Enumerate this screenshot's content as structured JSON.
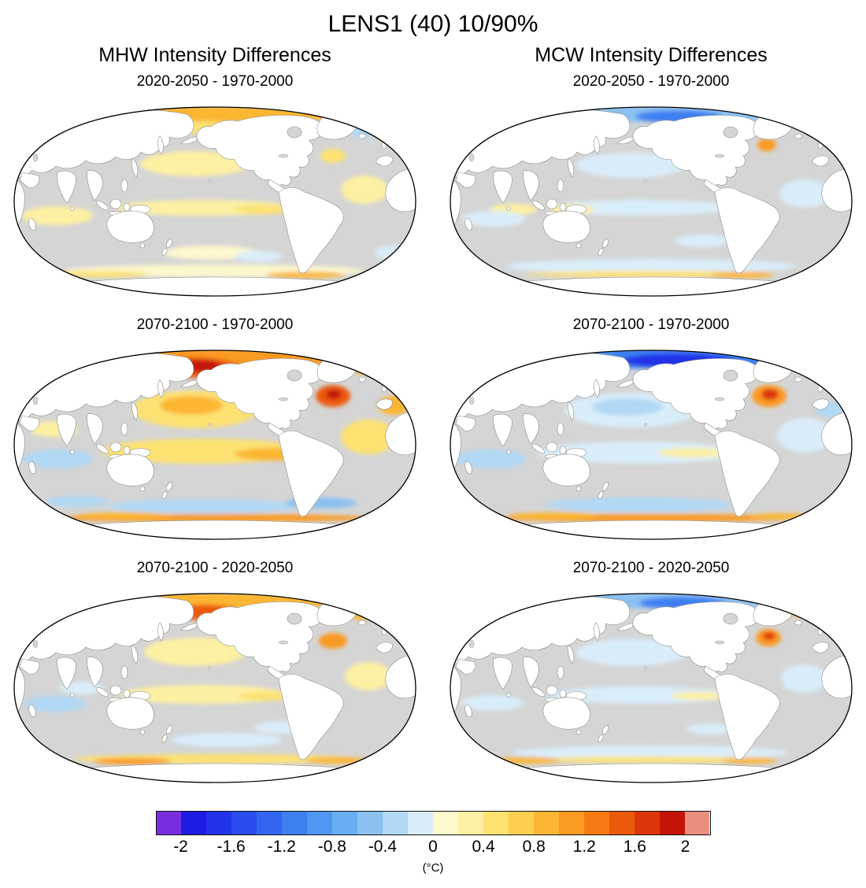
{
  "figure": {
    "title": "LENS1 (40) 10/90%",
    "columns": [
      {
        "label": "MHW Intensity Differences"
      },
      {
        "label": "MCW Intensity Differences"
      }
    ],
    "panels": [
      {
        "column": "MHW",
        "title": "2020-2050 - 1970-2000"
      },
      {
        "column": "MCW",
        "title": "2020-2050 - 1970-2000"
      },
      {
        "column": "MHW",
        "title": "2070-2100 - 1970-2000"
      },
      {
        "column": "MCW",
        "title": "2070-2100 - 1970-2000"
      },
      {
        "column": "MHW",
        "title": "2070-2100 - 2020-2050"
      },
      {
        "column": "MCW",
        "title": "2070-2100 - 2020-2050"
      }
    ]
  },
  "colorbar": {
    "unit_label": "(°C)",
    "tick_labels": [
      "-2",
      "-1.6",
      "-1.2",
      "-0.8",
      "-0.4",
      "0",
      "0.4",
      "0.8",
      "1.2",
      "1.6",
      "2"
    ],
    "segments": [
      {
        "range": "< -2.0",
        "color": "#7a2ee0"
      },
      {
        "range": "-2.0 to -1.8",
        "color": "#1c1ce4"
      },
      {
        "range": "-1.8 to -1.6",
        "color": "#2233ea"
      },
      {
        "range": "-1.6 to -1.4",
        "color": "#2a4cee"
      },
      {
        "range": "-1.4 to -1.2",
        "color": "#3366f0"
      },
      {
        "range": "-1.2 to -1.0",
        "color": "#3e7ff2"
      },
      {
        "range": "-1.0 to -0.8",
        "color": "#4f97f3"
      },
      {
        "range": "-0.8 to -0.6",
        "color": "#68acf2"
      },
      {
        "range": "-0.6 to -0.4",
        "color": "#8ac1f1"
      },
      {
        "range": "-0.4 to -0.2",
        "color": "#b1d8f4"
      },
      {
        "range": "-0.2 to 0",
        "color": "#d9edf9"
      },
      {
        "range": "0 to 0.2",
        "color": "#fdf8cd"
      },
      {
        "range": "0.2 to 0.4",
        "color": "#fdf0a2"
      },
      {
        "range": "0.4 to 0.6",
        "color": "#fde272"
      },
      {
        "range": "0.6 to 0.8",
        "color": "#fccf4e"
      },
      {
        "range": "0.8 to 1.0",
        "color": "#fcb633"
      },
      {
        "range": "1.0 to 1.2",
        "color": "#fb9a21"
      },
      {
        "range": "1.2 to 1.4",
        "color": "#f67a12"
      },
      {
        "range": "1.4 to 1.6",
        "color": "#ec5a0b"
      },
      {
        "range": "1.6 to 1.8",
        "color": "#dd350b"
      },
      {
        "range": "1.8 to 2.0",
        "color": "#c31407"
      },
      {
        "range": "> 2.0",
        "color": "#e98f7e"
      }
    ]
  },
  "map_colors": {
    "ocean": "#d5d5d5",
    "land": "#ffffff",
    "coastline": "#8d8d8d",
    "outline": "#000000"
  },
  "chart_data": {
    "type": "heatmap",
    "title": "LENS1 (40) 10/90%",
    "layout": {
      "rows": 3,
      "cols": 2,
      "projection": "Robinson, Pacific-centered",
      "grid": false,
      "colorbar_position": "bottom"
    },
    "column_titles": [
      "MHW Intensity Differences",
      "MCW Intensity Differences"
    ],
    "row_titles": [
      "2020-2050 - 1970-2000",
      "2070-2100 - 1970-2000",
      "2070-2100 - 2020-2050"
    ],
    "colorbar": {
      "label": "(°C)",
      "ticks": [
        -2,
        -1.6,
        -1.2,
        -0.8,
        -0.4,
        0,
        0.4,
        0.8,
        1.2,
        1.6,
        2
      ],
      "cell_width": 0.2,
      "range": [
        -2.2,
        2.2
      ]
    },
    "panels": [
      {
        "column": "MHW",
        "difference": "2020-2050 - 1970-2000",
        "pattern_summary": "Weak warm anomalies (0 to 0.6 C) over most oceans; stronger warm band (0.4 to 1 C) along Arctic margin and Bering Sea; pale yellow patches in tropical Pacific, Indian Ocean and along the Antarctic coastal band; small cool patch east of Greenland."
      },
      {
        "column": "MCW",
        "difference": "2020-2050 - 1970-2000",
        "pattern_summary": "Weak cold anomalies (-0.6 to 0 C) over most oceans; cold blue band along Arctic margin; small warm spot near Labrador Sea / NW Atlantic; scattered pale yellow near Indonesia and a weak warm band along the Antarctic coast."
      },
      {
        "column": "MHW",
        "difference": "2070-2100 - 1970-2000",
        "pattern_summary": "Widespread warming 0.2 to 0.8 C; strongest (>1.6 C) in Bering/Chukchi Seas and NW Atlantic; broad yellow over North Pacific and tropics; warm band along Antarctic coast; weak cooling patches in the Southern Ocean and Indian Ocean."
      },
      {
        "column": "MCW",
        "difference": "2070-2100 - 1970-2000",
        "pattern_summary": "Widespread -0.8 to 0 C; strong negative (<-1.6 C) band along Arctic margin; strong positive (>1.2 C) spot in NW Atlantic; pale blue over North Pacific and tropics; warm orange band along Antarctic coast."
      },
      {
        "column": "MHW",
        "difference": "2070-2100 - 2020-2050",
        "pattern_summary": "Moderate warm anomalies; Arctic margin and NW Atlantic 0.8 to 1.6 C; pale yellow over North Pacific and tropics; light cooling patches in Indian Ocean and South Pacific; yellow-orange band near Antarctic coast."
      },
      {
        "column": "MCW",
        "difference": "2070-2100 - 2020-2050",
        "pattern_summary": "Moderate cold anomalies; Arctic margin -0.4 to -1.2 C; NW Atlantic warm spot about 1 C; pale blue tropics and Southern Ocean; weak warm band near the Antarctic coast."
      }
    ]
  }
}
